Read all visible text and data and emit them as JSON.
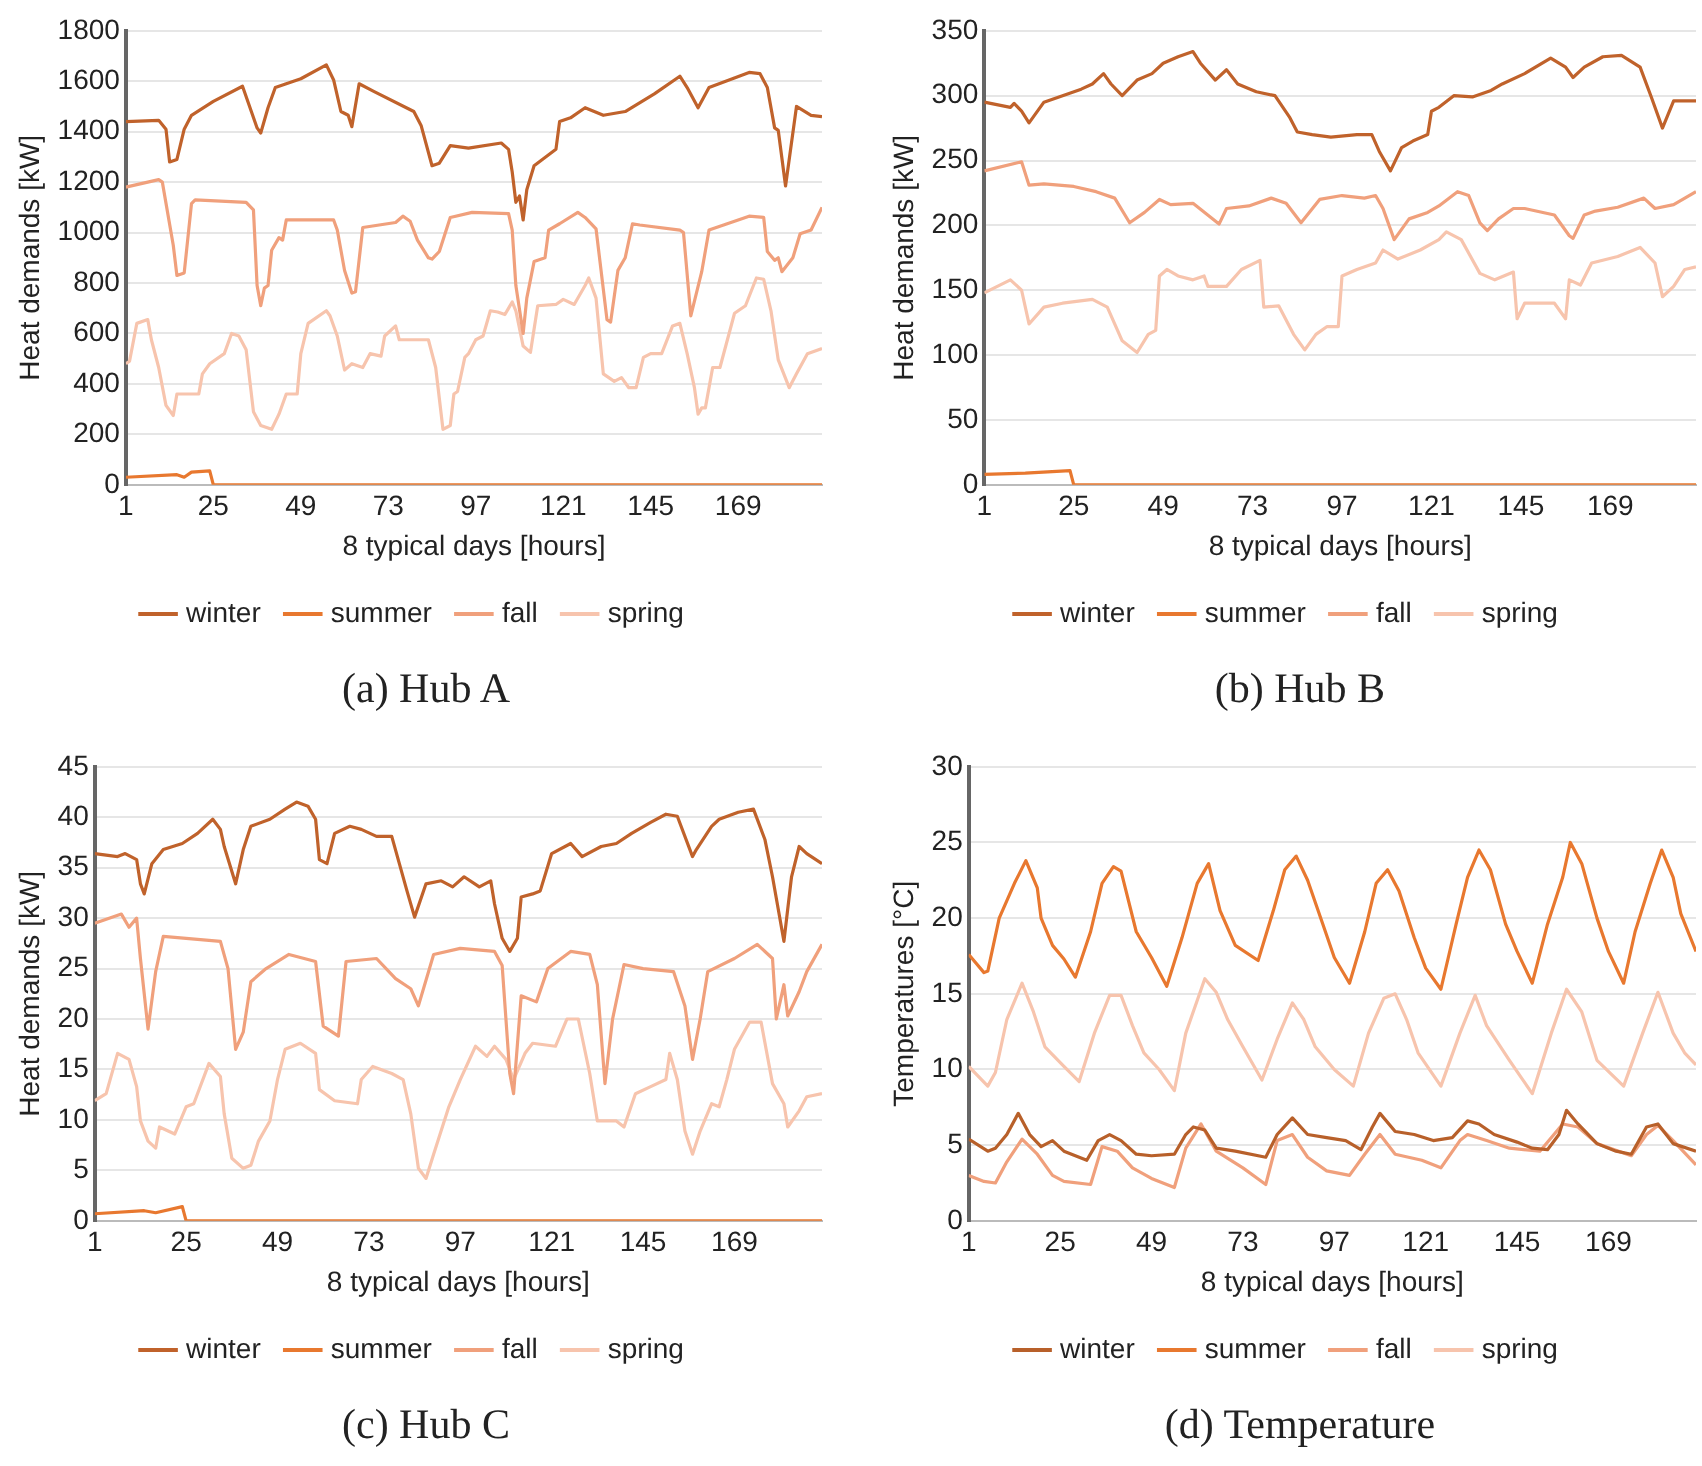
{
  "chart_data": [
    {
      "type": "line",
      "title": "(a) Hub A",
      "xlabel": "8 typical days [hours]",
      "ylabel": "Heat demands [kW]",
      "xlim": [
        1,
        192
      ],
      "xticks": [
        1,
        25,
        49,
        73,
        97,
        121,
        145,
        169
      ],
      "ylim": [
        0,
        1800
      ],
      "yticks": [
        0,
        200,
        400,
        600,
        800,
        1000,
        1200,
        1400,
        1600,
        1800
      ],
      "grid": "y",
      "legend": "bottom",
      "series": [
        {
          "name": "winter",
          "color": "#c0622b",
          "x": [
            1,
            10,
            12,
            13,
            15,
            17,
            19,
            25,
            33,
            37,
            38,
            40,
            42,
            49,
            56,
            58,
            60,
            62,
            63,
            65,
            69,
            80,
            82,
            85,
            87,
            90,
            95,
            104,
            106,
            107,
            108,
            109,
            110,
            111,
            113,
            119,
            120,
            123,
            127,
            132,
            138,
            146,
            153,
            155,
            158,
            161,
            172,
            175,
            177,
            179,
            180,
            182,
            185,
            189,
            192
          ],
          "values": [
            1440,
            1445,
            1410,
            1280,
            1290,
            1410,
            1465,
            1520,
            1580,
            1415,
            1395,
            1495,
            1575,
            1610,
            1665,
            1605,
            1480,
            1465,
            1420,
            1590,
            1560,
            1480,
            1425,
            1265,
            1275,
            1345,
            1335,
            1355,
            1330,
            1240,
            1120,
            1145,
            1050,
            1170,
            1265,
            1330,
            1440,
            1455,
            1495,
            1465,
            1480,
            1550,
            1620,
            1575,
            1495,
            1575,
            1635,
            1630,
            1575,
            1415,
            1405,
            1185,
            1500,
            1465,
            1460
          ]
        },
        {
          "name": "summer",
          "color": "#e8782f",
          "x": [
            1,
            15,
            17,
            19,
            24,
            25,
            192
          ],
          "values": [
            30,
            40,
            30,
            50,
            55,
            0,
            0
          ]
        },
        {
          "name": "fall",
          "color": "#f0a07c",
          "x": [
            1,
            10,
            11,
            14,
            15,
            17,
            19,
            20,
            34,
            36,
            37,
            38,
            39,
            40,
            41,
            43,
            44,
            45,
            58,
            59,
            61,
            63,
            64,
            66,
            75,
            77,
            79,
            81,
            84,
            85,
            87,
            90,
            96,
            106,
            107,
            108,
            110,
            111,
            113,
            116,
            117,
            120,
            125,
            127,
            130,
            133,
            134,
            136,
            138,
            140,
            142,
            153,
            154,
            156,
            159,
            161,
            172,
            176,
            177,
            179,
            180,
            181,
            184,
            186,
            189,
            192
          ],
          "values": [
            1180,
            1210,
            1200,
            950,
            830,
            840,
            1115,
            1130,
            1120,
            1090,
            790,
            710,
            780,
            790,
            930,
            980,
            970,
            1050,
            1050,
            1010,
            850,
            760,
            765,
            1020,
            1040,
            1065,
            1045,
            970,
            900,
            895,
            925,
            1060,
            1080,
            1075,
            1010,
            790,
            600,
            740,
            885,
            900,
            1010,
            1035,
            1080,
            1060,
            1015,
            655,
            645,
            850,
            900,
            1035,
            1030,
            1010,
            1000,
            670,
            845,
            1010,
            1065,
            1060,
            925,
            890,
            900,
            845,
            900,
            995,
            1010,
            1100
          ]
        },
        {
          "name": "spring",
          "color": "#f7c4ad",
          "x": [
            1,
            2,
            4,
            7,
            8,
            10,
            12,
            14,
            15,
            19,
            21,
            22,
            24,
            28,
            30,
            32,
            34,
            36,
            38,
            41,
            43,
            45,
            48,
            49,
            51,
            56,
            57,
            59,
            61,
            63,
            66,
            68,
            71,
            72,
            75,
            76,
            84,
            86,
            88,
            90,
            91,
            92,
            94,
            95,
            97,
            99,
            101,
            103,
            105,
            107,
            108,
            110,
            112,
            114,
            119,
            121,
            124,
            127,
            128,
            130,
            132,
            135,
            137,
            139,
            141,
            143,
            145,
            148,
            151,
            153,
            155,
            157,
            158,
            159,
            160,
            162,
            164,
            168,
            171,
            174,
            176,
            178,
            180,
            183,
            185,
            188,
            192
          ],
          "values": [
            480,
            490,
            640,
            655,
            575,
            465,
            315,
            275,
            360,
            360,
            360,
            440,
            480,
            520,
            600,
            590,
            535,
            290,
            235,
            220,
            280,
            360,
            360,
            520,
            640,
            690,
            670,
            590,
            455,
            480,
            465,
            520,
            510,
            590,
            630,
            575,
            575,
            465,
            220,
            235,
            360,
            370,
            505,
            520,
            575,
            590,
            690,
            685,
            675,
            725,
            690,
            550,
            525,
            710,
            715,
            735,
            715,
            790,
            820,
            740,
            440,
            410,
            425,
            385,
            385,
            505,
            520,
            520,
            630,
            640,
            520,
            385,
            280,
            305,
            305,
            465,
            465,
            680,
            710,
            820,
            815,
            690,
            495,
            385,
            440,
            520,
            540
          ]
        }
      ]
    },
    {
      "type": "line",
      "title": "(b) Hub B",
      "xlabel": "8 typical days [hours]",
      "ylabel": "Heat demands [kW]",
      "xlim": [
        1,
        192
      ],
      "xticks": [
        1,
        25,
        49,
        73,
        97,
        121,
        145,
        169
      ],
      "ylim": [
        0,
        350
      ],
      "yticks": [
        0,
        50,
        100,
        150,
        200,
        250,
        300,
        350
      ],
      "grid": "y",
      "legend": "bottom",
      "series": [
        {
          "name": "winter",
          "color": "#c0622b",
          "x": [
            1,
            8,
            9,
            11,
            13,
            17,
            22,
            27,
            30,
            33,
            35,
            38,
            42,
            46,
            49,
            53,
            57,
            59,
            63,
            66,
            69,
            74,
            79,
            83,
            85,
            89,
            94,
            101,
            105,
            107,
            110,
            113,
            116,
            120,
            121,
            123,
            127,
            132,
            137,
            140,
            146,
            153,
            157,
            159,
            162,
            167,
            172,
            177,
            180,
            183,
            186,
            192
          ],
          "values": [
            295,
            291,
            294,
            288,
            279,
            295,
            300,
            305,
            309,
            317,
            309,
            300,
            312,
            317,
            325,
            330,
            334,
            325,
            312,
            320,
            309,
            303,
            300,
            283,
            272,
            270,
            268,
            270,
            270,
            257,
            242,
            260,
            265,
            270,
            288,
            291,
            300,
            299,
            304,
            309,
            317,
            329,
            322,
            314,
            322,
            330,
            331,
            322,
            299,
            275,
            296,
            296
          ]
        },
        {
          "name": "summer",
          "color": "#e8782f",
          "x": [
            1,
            12,
            24,
            25,
            192
          ],
          "values": [
            8,
            9,
            11,
            0,
            0
          ]
        },
        {
          "name": "fall",
          "color": "#f0a07c",
          "x": [
            1,
            11,
            13,
            17,
            25,
            31,
            36,
            40,
            44,
            48,
            51,
            57,
            64,
            66,
            72,
            78,
            82,
            86,
            91,
            97,
            103,
            106,
            108,
            111,
            115,
            120,
            123,
            128,
            131,
            134,
            136,
            139,
            143,
            146,
            154,
            158,
            159,
            162,
            165,
            171,
            178,
            181,
            186,
            192
          ],
          "values": [
            242,
            249,
            231,
            232,
            230,
            226,
            221,
            202,
            210,
            220,
            216,
            217,
            201,
            213,
            215,
            221,
            217,
            202,
            220,
            223,
            221,
            223,
            213,
            189,
            205,
            210,
            215,
            226,
            223,
            202,
            196,
            205,
            213,
            213,
            208,
            192,
            190,
            208,
            211,
            214,
            221,
            213,
            216,
            226
          ]
        },
        {
          "name": "spring",
          "color": "#f7c4ad",
          "x": [
            1,
            8,
            11,
            13,
            17,
            22,
            30,
            34,
            38,
            42,
            45,
            47,
            48,
            50,
            53,
            57,
            60,
            61,
            63,
            66,
            70,
            75,
            76,
            80,
            84,
            87,
            90,
            93,
            96,
            97,
            101,
            106,
            108,
            112,
            118,
            123,
            125,
            129,
            134,
            138,
            143,
            144,
            146,
            154,
            157,
            158,
            161,
            164,
            171,
            177,
            181,
            183,
            186,
            189,
            192
          ],
          "values": [
            148,
            158,
            150,
            124,
            137,
            140,
            143,
            137,
            111,
            102,
            116,
            119,
            161,
            166,
            161,
            158,
            161,
            153,
            153,
            153,
            166,
            173,
            137,
            138,
            116,
            104,
            116,
            122,
            122,
            161,
            166,
            171,
            181,
            174,
            181,
            189,
            195,
            189,
            163,
            158,
            164,
            128,
            140,
            140,
            128,
            158,
            154,
            171,
            176,
            183,
            171,
            145,
            153,
            166,
            168
          ]
        }
      ]
    },
    {
      "type": "line",
      "title": "(c) Hub C",
      "xlabel": "8 typical days [hours]",
      "ylabel": "Heat demands [kW]",
      "xlim": [
        1,
        192
      ],
      "xticks": [
        1,
        25,
        49,
        73,
        97,
        121,
        145,
        169
      ],
      "ylim": [
        0,
        45
      ],
      "yticks": [
        0,
        5,
        10,
        15,
        20,
        25,
        30,
        35,
        40,
        45
      ],
      "grid": "y",
      "legend": "bottom",
      "series": [
        {
          "name": "winter",
          "color": "#c0622b",
          "x": [
            1,
            7,
            9,
            12,
            13,
            14,
            16,
            19,
            24,
            28,
            32,
            34,
            35,
            38,
            40,
            42,
            47,
            51,
            54,
            57,
            59,
            60,
            62,
            64,
            68,
            71,
            75,
            79,
            81,
            83,
            85,
            88,
            92,
            95,
            98,
            102,
            105,
            106,
            108,
            110,
            112,
            113,
            116,
            118,
            121,
            126,
            129,
            134,
            138,
            142,
            147,
            151,
            154,
            158,
            159,
            163,
            165,
            170,
            174,
            177,
            179,
            182,
            184,
            186,
            188,
            192
          ],
          "values": [
            36.4,
            36.1,
            36.4,
            35.8,
            33.4,
            32.4,
            35.4,
            36.8,
            37.4,
            38.4,
            39.8,
            38.8,
            37.1,
            33.4,
            36.8,
            39.1,
            39.8,
            40.8,
            41.5,
            41.1,
            39.8,
            35.8,
            35.4,
            38.4,
            39.1,
            38.8,
            38.1,
            38.1,
            35.4,
            32.7,
            30.1,
            33.4,
            33.7,
            33.1,
            34.1,
            33.1,
            33.7,
            31.4,
            28,
            26.7,
            28,
            32.1,
            32.4,
            32.7,
            36.4,
            37.4,
            36.1,
            37.1,
            37.4,
            38.4,
            39.5,
            40.3,
            40.1,
            36.1,
            36.8,
            39.1,
            39.8,
            40.5,
            40.8,
            37.8,
            34.1,
            27.7,
            34.1,
            37.1,
            36.4,
            35.4
          ]
        },
        {
          "name": "summer",
          "color": "#e8782f",
          "x": [
            1,
            14,
            17,
            24,
            25,
            192
          ],
          "values": [
            0.7,
            1,
            0.8,
            1.4,
            0,
            0
          ]
        },
        {
          "name": "fall",
          "color": "#f0a07c",
          "x": [
            1,
            8,
            10,
            12,
            13,
            15,
            17,
            19,
            34,
            36,
            38,
            40,
            42,
            46,
            52,
            59,
            61,
            65,
            67,
            75,
            80,
            84,
            86,
            90,
            97,
            106,
            108,
            110,
            111,
            113,
            117,
            120,
            126,
            131,
            133,
            135,
            137,
            140,
            145,
            153,
            156,
            158,
            160,
            162,
            169,
            175,
            179,
            180,
            182,
            183,
            186,
            188,
            192
          ],
          "values": [
            29.5,
            30.4,
            29.1,
            30,
            26,
            19,
            24.7,
            28.2,
            27.7,
            25,
            17,
            18.7,
            23.7,
            25,
            26.4,
            25.7,
            19.3,
            18.3,
            25.7,
            26,
            24,
            23,
            21.3,
            26.4,
            27,
            26.7,
            25.3,
            14.6,
            12.6,
            22.3,
            21.7,
            25,
            26.7,
            26.4,
            23.4,
            13.6,
            20,
            25.4,
            25,
            24.7,
            21.3,
            16,
            20,
            24.7,
            26,
            27.4,
            26,
            20,
            23.4,
            20.3,
            22.7,
            24.7,
            27.4
          ]
        },
        {
          "name": "spring",
          "color": "#f7c4ad",
          "x": [
            1,
            4,
            7,
            10,
            12,
            13,
            15,
            17,
            18,
            22,
            25,
            27,
            31,
            34,
            35,
            37,
            40,
            42,
            44,
            47,
            49,
            51,
            55,
            59,
            60,
            64,
            70,
            71,
            74,
            79,
            82,
            84,
            86,
            88,
            90,
            94,
            97,
            101,
            104,
            106,
            109,
            111,
            114,
            116,
            122,
            125,
            128,
            131,
            133,
            138,
            140,
            143,
            147,
            151,
            152,
            154,
            156,
            158,
            160,
            163,
            165,
            167,
            169,
            173,
            176,
            179,
            182,
            183,
            186,
            188,
            192
          ],
          "values": [
            11.9,
            12.6,
            16.6,
            16,
            13.3,
            9.9,
            7.9,
            7.2,
            9.3,
            8.6,
            11.3,
            11.6,
            15.6,
            14.3,
            10.6,
            6.2,
            5.2,
            5.5,
            7.9,
            9.9,
            14,
            17,
            17.6,
            16.6,
            13,
            11.9,
            11.6,
            14,
            15.3,
            14.6,
            14,
            10.6,
            5.2,
            4.2,
            6.6,
            11.3,
            14,
            17.3,
            16.3,
            17.3,
            16,
            14,
            16.6,
            17.6,
            17.3,
            20,
            20,
            14.6,
            9.9,
            9.9,
            9.3,
            12.6,
            13.3,
            14,
            16.6,
            14,
            8.9,
            6.6,
            8.9,
            11.6,
            11.3,
            14,
            17,
            19.7,
            19.7,
            13.6,
            11.6,
            9.3,
            10.9,
            12.3,
            12.6
          ]
        }
      ]
    },
    {
      "type": "line",
      "title": "(d) Temperature",
      "xlabel": "8 typical days [hours]",
      "ylabel": "Temperatures [°C]",
      "xlim": [
        1,
        192
      ],
      "xticks": [
        1,
        25,
        49,
        73,
        97,
        121,
        145,
        169
      ],
      "ylim": [
        0,
        30
      ],
      "yticks": [
        0,
        5,
        10,
        15,
        20,
        25,
        30
      ],
      "grid": "y",
      "legend": "bottom",
      "series": [
        {
          "name": "winter",
          "color": "#b8602a",
          "x": [
            1,
            6,
            8,
            11,
            14,
            17,
            20,
            23,
            26,
            32,
            35,
            38,
            41,
            45,
            49,
            55,
            58,
            60,
            63,
            66,
            71,
            79,
            82,
            86,
            90,
            95,
            100,
            104,
            107,
            109,
            113,
            118,
            123,
            128,
            132,
            135,
            139,
            145,
            149,
            153,
            156,
            158,
            161,
            166,
            171,
            175,
            179,
            182,
            186,
            192
          ],
          "values": [
            5.4,
            4.6,
            4.8,
            5.7,
            7.1,
            5.7,
            4.9,
            5.3,
            4.6,
            4,
            5.3,
            5.7,
            5.3,
            4.4,
            4.3,
            4.4,
            5.7,
            6.2,
            6,
            4.8,
            4.6,
            4.2,
            5.7,
            6.8,
            5.7,
            5.5,
            5.3,
            4.7,
            6.2,
            7.1,
            5.9,
            5.7,
            5.3,
            5.5,
            6.6,
            6.4,
            5.7,
            5.2,
            4.8,
            4.7,
            5.7,
            7.3,
            6.4,
            5.1,
            4.6,
            4.4,
            6.2,
            6.4,
            5.1,
            4.6
          ]
        },
        {
          "name": "summer",
          "color": "#e8782f",
          "x": [
            1,
            5,
            6,
            9,
            13,
            16,
            19,
            20,
            23,
            26,
            29,
            33,
            36,
            39,
            41,
            45,
            49,
            53,
            57,
            61,
            64,
            67,
            71,
            77,
            81,
            84,
            87,
            90,
            94,
            97,
            101,
            105,
            108,
            111,
            114,
            118,
            121,
            125,
            129,
            132,
            135,
            138,
            142,
            145,
            149,
            153,
            157,
            159,
            162,
            166,
            169,
            173,
            176,
            180,
            183,
            186,
            188,
            192
          ],
          "values": [
            17.6,
            16.4,
            16.5,
            20,
            22.3,
            23.8,
            22,
            20,
            18.2,
            17.3,
            16.1,
            19.1,
            22.3,
            23.4,
            23.1,
            19.1,
            17.4,
            15.5,
            18.7,
            22.3,
            23.6,
            20.5,
            18.2,
            17.2,
            20.5,
            23.2,
            24.1,
            22.5,
            19.6,
            17.4,
            15.7,
            19.1,
            22.3,
            23.2,
            21.8,
            18.7,
            16.7,
            15.3,
            19.6,
            22.7,
            24.5,
            23.2,
            19.6,
            17.8,
            15.7,
            19.6,
            22.7,
            25,
            23.6,
            20,
            17.8,
            15.7,
            19.1,
            22.3,
            24.5,
            22.7,
            20.3,
            17.8
          ]
        },
        {
          "name": "fall",
          "color": "#f0a07c",
          "x": [
            1,
            5,
            8,
            11,
            15,
            19,
            23,
            26,
            33,
            36,
            40,
            44,
            49,
            55,
            58,
            62,
            66,
            73,
            79,
            82,
            86,
            90,
            95,
            101,
            105,
            109,
            113,
            120,
            125,
            130,
            132,
            137,
            143,
            151,
            157,
            161,
            166,
            175,
            179,
            182,
            186,
            192
          ],
          "values": [
            3,
            2.6,
            2.5,
            3.9,
            5.4,
            4.4,
            3,
            2.6,
            2.4,
            4.9,
            4.6,
            3.5,
            2.8,
            2.2,
            4.8,
            6.4,
            4.6,
            3.5,
            2.4,
            5.3,
            5.7,
            4.2,
            3.3,
            3,
            4.4,
            5.7,
            4.4,
            4,
            3.5,
            5.3,
            5.7,
            5.3,
            4.8,
            4.6,
            6.4,
            6.2,
            5.1,
            4.3,
            5.7,
            6.3,
            5.3,
            3.7
          ]
        },
        {
          "name": "spring",
          "color": "#f7c4ad",
          "x": [
            1,
            6,
            8,
            11,
            15,
            18,
            21,
            26,
            30,
            34,
            38,
            41,
            44,
            47,
            51,
            55,
            58,
            63,
            66,
            69,
            73,
            78,
            82,
            86,
            89,
            92,
            97,
            102,
            106,
            110,
            113,
            116,
            119,
            125,
            130,
            134,
            137,
            143,
            149,
            154,
            158,
            162,
            166,
            173,
            178,
            182,
            186,
            189,
            192
          ],
          "values": [
            10.2,
            8.9,
            9.8,
            13.3,
            15.7,
            13.8,
            11.5,
            10.2,
            9.2,
            12.4,
            14.9,
            14.9,
            12.9,
            11.1,
            10,
            8.6,
            12.4,
            16,
            15.1,
            13.3,
            11.5,
            9.3,
            12,
            14.4,
            13.3,
            11.5,
            10,
            8.9,
            12.4,
            14.7,
            15,
            13.3,
            11.1,
            8.9,
            12.4,
            14.9,
            12.9,
            10.6,
            8.4,
            12.4,
            15.3,
            13.8,
            10.6,
            8.9,
            12.4,
            15.1,
            12.4,
            11.1,
            10.3
          ]
        }
      ]
    }
  ]
}
